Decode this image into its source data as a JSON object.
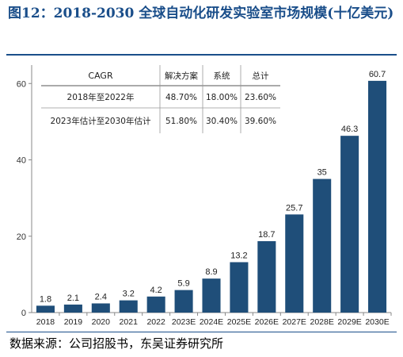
{
  "title": "图12：2018-2030 全球自动化研发实验室市场规模(十亿美元)",
  "source": "数据来源：公司招股书，东吴证券研究所",
  "colors": {
    "bar": "#1f4e79",
    "title": "#1a4e8a",
    "axis": "#888888"
  },
  "chart_data": {
    "type": "bar",
    "categories": [
      "2018",
      "2019",
      "2020",
      "2021",
      "2022",
      "2023E",
      "2024E",
      "2025E",
      "2026E",
      "2027E",
      "2028E",
      "2029E",
      "2030E"
    ],
    "values": [
      1.8,
      2.1,
      2.4,
      3.2,
      4.2,
      5.9,
      8.9,
      13.2,
      18.7,
      25.7,
      35,
      46.3,
      60.7
    ],
    "data_labels": [
      "1.8",
      "2.1",
      "2.4",
      "3.2",
      "4.2",
      "5.9",
      "8.9",
      "13.2",
      "18.7",
      "25.7",
      "35",
      "46.3",
      "60.7"
    ],
    "title": "",
    "xlabel": "",
    "ylabel": "",
    "ylim": [
      0,
      64
    ],
    "yticks": [
      0,
      20,
      40,
      60
    ],
    "grid": false,
    "legend": "none"
  },
  "cagr_table": {
    "headers": [
      "CAGR",
      "解决方案",
      "系统",
      "总计"
    ],
    "rows": [
      [
        "2018年至2022年",
        "48.70%",
        "18.00%",
        "23.60%"
      ],
      [
        "2023年估计至2030年估计",
        "51.80%",
        "30.40%",
        "39.60%"
      ]
    ]
  }
}
